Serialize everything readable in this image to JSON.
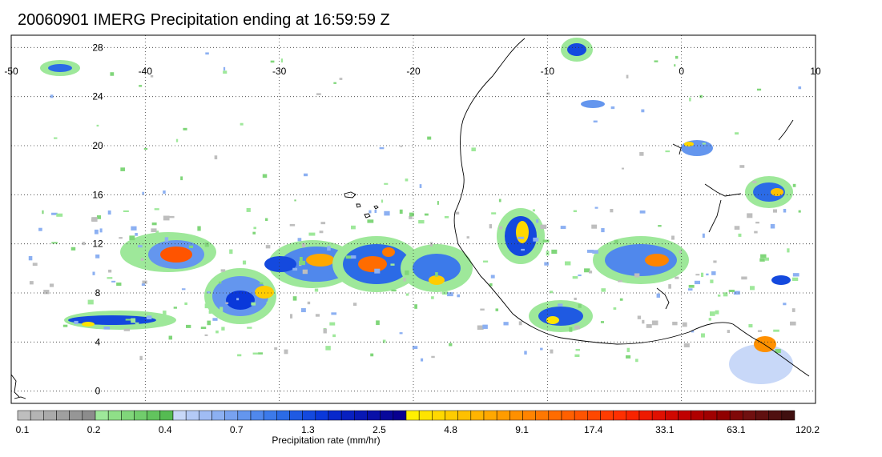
{
  "title": "20060901 IMERG Precipitation ending at 16:59:59 Z",
  "map": {
    "lon_range": [
      -50,
      10
    ],
    "lat_range": [
      -1,
      29
    ],
    "lon_ticks": [
      "-50",
      "-40",
      "-30",
      "-20",
      "-10",
      "0",
      "10"
    ],
    "lat_ticks": [
      "28",
      "24",
      "20",
      "16",
      "12",
      "8",
      "4",
      "0"
    ],
    "lon_tick_values": [
      -50,
      -40,
      -30,
      -20,
      -10,
      0,
      10
    ],
    "lat_tick_values": [
      28,
      24,
      20,
      16,
      12,
      8,
      4,
      0
    ],
    "gridlines": "dotted"
  },
  "colorbar": {
    "label": "Precipitation rate (mm/hr)",
    "tick_labels": [
      "0.1",
      "0.2",
      "0.4",
      "0.7",
      "1.3",
      "2.5",
      "4.8",
      "9.1",
      "17.4",
      "33.1",
      "63.1",
      "120.2"
    ],
    "colors": [
      "#bebebe",
      "#b4b4b4",
      "#aaaaaa",
      "#a0a0a0",
      "#969696",
      "#8c8c8c",
      "#9ee89a",
      "#8fdf88",
      "#80d67a",
      "#71cd6c",
      "#62c45e",
      "#55bb52",
      "#c8d8f8",
      "#b4caf6",
      "#a0bcf4",
      "#8cb0f2",
      "#78a2f0",
      "#6496ee",
      "#5088ec",
      "#3c7aea",
      "#2b6be6",
      "#1f5ae2",
      "#1449de",
      "#0a38da",
      "#0828cc",
      "#0820c0",
      "#0818b4",
      "#0810a8",
      "#08089c",
      "#080090",
      "#fff000",
      "#ffe400",
      "#ffd800",
      "#ffcc00",
      "#ffc000",
      "#ffb400",
      "#ffa800",
      "#ff9c00",
      "#ff9000",
      "#ff8400",
      "#ff7800",
      "#ff6c00",
      "#ff6000",
      "#ff5400",
      "#ff4800",
      "#ff3c00",
      "#ff3000",
      "#f82400",
      "#ee1a00",
      "#e01000",
      "#d00800",
      "#c00000",
      "#b00000",
      "#a00000",
      "#900000",
      "#800808",
      "#701010",
      "#601010",
      "#501010",
      "#401010"
    ]
  }
}
